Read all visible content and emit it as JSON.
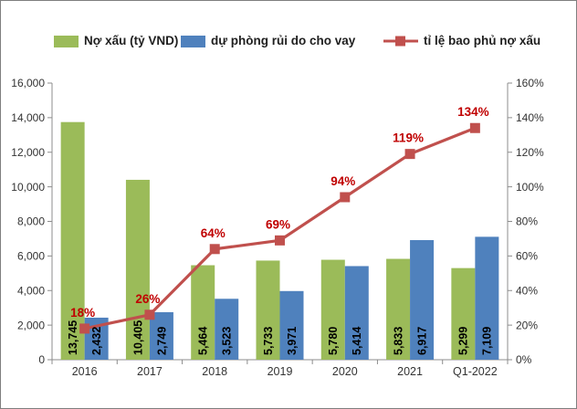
{
  "legend": {
    "items": [
      {
        "label": "Nợ xấu (tỷ VND)",
        "marker": "swatch",
        "color": "#9BBB59"
      },
      {
        "label": "dự phòng rủi do cho vay",
        "marker": "swatch",
        "color": "#4F81BD"
      },
      {
        "label": "tỉ lệ bao phủ nợ xấu",
        "marker": "line-square",
        "color": "#C0504D"
      }
    ]
  },
  "chart_data": {
    "type": "bar+line combo",
    "categories": [
      "2016",
      "2017",
      "2018",
      "2019",
      "2020",
      "2021",
      "Q1-2022"
    ],
    "series": [
      {
        "name": "Nợ xấu (tỷ VND)",
        "type": "bar",
        "axis": "left",
        "color": "#9BBB59",
        "values": [
          13745,
          10405,
          5464,
          5733,
          5780,
          5833,
          5299
        ],
        "labels": [
          "13,745",
          "10,405",
          "5,464",
          "5,733",
          "5,780",
          "5,833",
          "5,299"
        ]
      },
      {
        "name": "dự phòng rủi do cho vay",
        "type": "bar",
        "axis": "left",
        "color": "#4F81BD",
        "values": [
          2432,
          2749,
          3523,
          3971,
          5414,
          6917,
          7109
        ],
        "labels": [
          "2,432",
          "2,749",
          "3,523",
          "3,971",
          "5,414",
          "6,917",
          "7,109"
        ]
      },
      {
        "name": "tỉ lệ bao phủ nợ xấu",
        "type": "line",
        "axis": "right",
        "color": "#C0504D",
        "label_color": "#C00000",
        "values": [
          18,
          26,
          64,
          69,
          94,
          119,
          134
        ],
        "labels": [
          "18%",
          "26%",
          "64%",
          "69%",
          "94%",
          "119%",
          "134%"
        ]
      }
    ],
    "left_axis": {
      "min": 0,
      "max": 16000,
      "step": 2000,
      "tick_labels": [
        "0",
        "2,000",
        "4,000",
        "6,000",
        "8,000",
        "10,000",
        "12,000",
        "14,000",
        "16,000"
      ]
    },
    "right_axis": {
      "min": 0,
      "max": 160,
      "step": 20,
      "tick_labels": [
        "0%",
        "20%",
        "40%",
        "60%",
        "80%",
        "100%",
        "120%",
        "140%",
        "160%"
      ]
    },
    "grid": false,
    "legend_position": "top",
    "title": ""
  },
  "colors": {
    "axis_line": "#8C8C8C",
    "tick_text": "#333333",
    "bar_label": "#000000",
    "frame_border": "#7F7F7F",
    "background": "#FFFFFF"
  }
}
